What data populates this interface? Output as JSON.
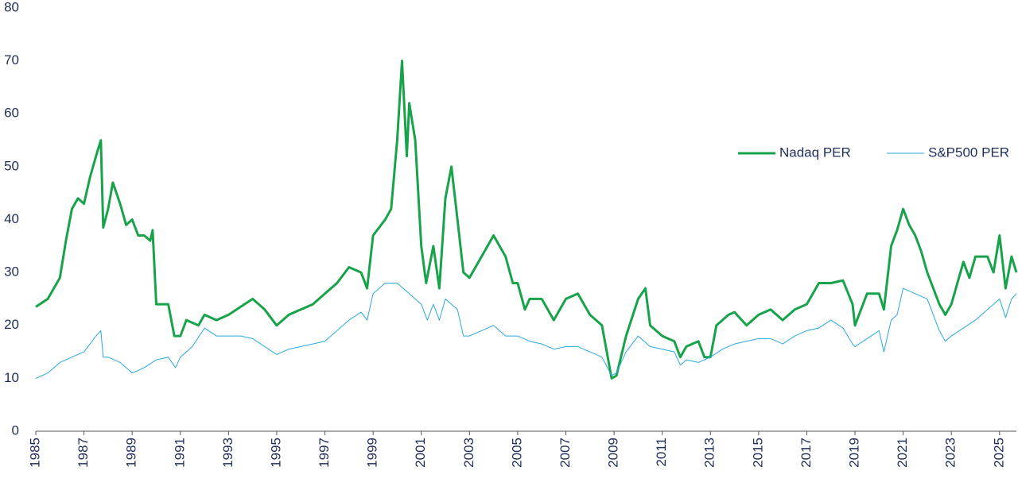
{
  "chart_data": {
    "type": "line",
    "xlim": [
      1985,
      2025.7
    ],
    "xticks": [
      1985,
      1987,
      1989,
      1991,
      1993,
      1995,
      1997,
      1999,
      2001,
      2003,
      2005,
      2007,
      2009,
      2011,
      2013,
      2015,
      2017,
      2019,
      2021,
      2023,
      2025
    ],
    "ylim": [
      0,
      80
    ],
    "yticks": [
      0,
      10,
      20,
      30,
      40,
      50,
      60,
      70,
      80
    ],
    "grid": false,
    "legend": "right",
    "series": [
      {
        "name": "Nadaq PER",
        "color": "#18a34a",
        "x": [
          1985.0,
          1985.5,
          1986.0,
          1986.25,
          1986.5,
          1986.75,
          1987.0,
          1987.25,
          1987.5,
          1987.7,
          1987.8,
          1988.0,
          1988.2,
          1988.5,
          1988.75,
          1989.0,
          1989.25,
          1989.5,
          1989.75,
          1989.85,
          1990.0,
          1990.5,
          1990.75,
          1991.0,
          1991.25,
          1991.75,
          1992.0,
          1992.5,
          1993.0,
          1993.5,
          1994.0,
          1994.5,
          1995.0,
          1995.5,
          1996.0,
          1996.5,
          1997.0,
          1997.5,
          1998.0,
          1998.5,
          1998.75,
          1999.0,
          1999.5,
          1999.75,
          2000.0,
          2000.2,
          2000.4,
          2000.5,
          2000.75,
          2001.0,
          2001.2,
          2001.5,
          2001.75,
          2002.0,
          2002.25,
          2002.5,
          2002.75,
          2003.0,
          2003.5,
          2004.0,
          2004.5,
          2004.8,
          2005.0,
          2005.3,
          2005.5,
          2006.0,
          2006.5,
          2007.0,
          2007.5,
          2008.0,
          2008.5,
          2008.9,
          2009.1,
          2009.5,
          2010.0,
          2010.3,
          2010.5,
          2011.0,
          2011.5,
          2011.75,
          2012.0,
          2012.5,
          2012.75,
          2013.0,
          2013.25,
          2013.75,
          2014.0,
          2014.5,
          2015.0,
          2015.5,
          2016.0,
          2016.5,
          2017.0,
          2017.5,
          2018.0,
          2018.5,
          2018.9,
          2019.0,
          2019.5,
          2020.0,
          2020.2,
          2020.5,
          2020.75,
          2021.0,
          2021.25,
          2021.5,
          2021.75,
          2022.0,
          2022.5,
          2022.75,
          2023.0,
          2023.5,
          2023.75,
          2024.0,
          2024.5,
          2024.75,
          2025.0,
          2025.25,
          2025.5,
          2025.7
        ],
        "values": [
          23.5,
          25,
          29,
          36,
          42,
          44,
          43,
          48,
          52,
          55,
          38.5,
          42,
          47,
          43,
          39,
          40,
          37,
          37,
          36,
          38,
          24,
          24,
          18,
          18,
          21,
          20,
          22,
          21,
          22,
          23.5,
          25,
          23,
          20,
          22,
          23,
          24,
          26,
          28,
          31,
          30,
          27,
          37,
          40,
          42,
          55,
          70,
          52,
          62,
          55,
          35,
          28,
          35,
          27,
          44,
          50,
          40,
          30,
          29,
          33,
          37,
          33,
          28,
          28,
          23,
          25,
          25,
          21,
          25,
          26,
          22,
          20,
          10,
          10.5,
          18,
          25,
          27,
          20,
          18,
          17,
          14,
          16,
          17,
          14,
          14,
          20,
          22,
          22.5,
          20,
          22,
          23,
          21,
          23,
          24,
          28,
          28,
          28.5,
          24,
          20,
          26,
          26,
          23,
          35,
          38,
          42,
          39,
          37,
          34,
          30,
          24,
          22,
          24,
          32,
          29,
          33,
          33,
          30,
          37,
          27,
          33,
          30
        ]
      },
      {
        "name": "S&P500 PER",
        "color": "#2aa8e0",
        "x": [
          1985.0,
          1985.5,
          1986.0,
          1986.5,
          1987.0,
          1987.5,
          1987.7,
          1987.8,
          1988.0,
          1988.5,
          1989.0,
          1989.5,
          1990.0,
          1990.5,
          1990.8,
          1991.0,
          1991.5,
          1992.0,
          1992.5,
          1993.0,
          1993.5,
          1994.0,
          1994.5,
          1995.0,
          1995.5,
          1996.0,
          1996.5,
          1997.0,
          1997.5,
          1998.0,
          1998.5,
          1998.75,
          1999.0,
          1999.5,
          2000.0,
          2000.5,
          2001.0,
          2001.25,
          2001.5,
          2001.75,
          2002.0,
          2002.5,
          2002.75,
          2003.0,
          2003.5,
          2004.0,
          2004.5,
          2005.0,
          2005.5,
          2006.0,
          2006.5,
          2007.0,
          2007.5,
          2008.0,
          2008.5,
          2008.9,
          2009.1,
          2009.5,
          2010.0,
          2010.5,
          2011.0,
          2011.5,
          2011.75,
          2012.0,
          2012.5,
          2013.0,
          2013.5,
          2014.0,
          2014.5,
          2015.0,
          2015.5,
          2016.0,
          2016.5,
          2017.0,
          2017.5,
          2018.0,
          2018.5,
          2018.9,
          2019.0,
          2019.5,
          2020.0,
          2020.2,
          2020.5,
          2020.75,
          2021.0,
          2021.5,
          2022.0,
          2022.5,
          2022.75,
          2023.0,
          2023.5,
          2024.0,
          2024.5,
          2024.75,
          2025.0,
          2025.25,
          2025.5,
          2025.7
        ],
        "values": [
          10,
          11,
          13,
          14,
          15,
          18,
          19,
          14,
          14,
          13,
          11,
          12,
          13.5,
          14,
          12,
          14,
          16,
          19.5,
          18,
          18,
          18,
          17.5,
          16,
          14.5,
          15.5,
          16,
          16.5,
          17,
          19,
          21,
          22.5,
          21,
          26,
          28,
          28,
          26,
          24,
          21,
          24,
          21,
          25,
          23,
          18,
          18,
          19,
          20,
          18,
          18,
          17,
          16.5,
          15.5,
          16,
          16,
          15,
          14,
          10.5,
          11,
          15,
          18,
          16,
          15.5,
          15,
          12.5,
          13.5,
          13,
          14,
          15.5,
          16.5,
          17,
          17.5,
          17.5,
          16.5,
          18,
          19,
          19.5,
          21,
          19.5,
          16.5,
          16,
          17.5,
          19,
          15,
          21,
          22,
          27,
          26,
          25,
          19,
          17,
          18,
          19.5,
          21,
          23,
          24,
          25,
          21.5,
          25,
          26
        ]
      }
    ]
  }
}
